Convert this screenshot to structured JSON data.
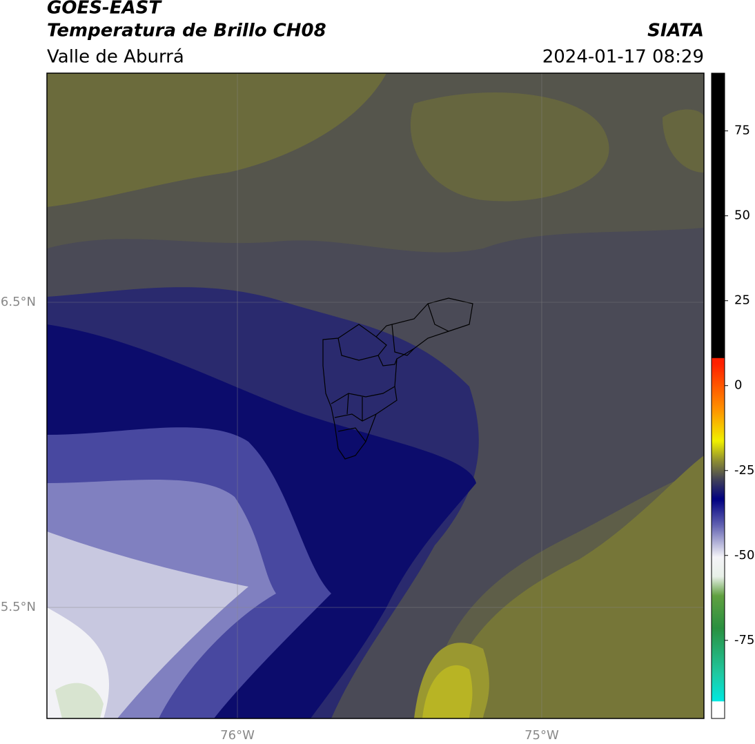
{
  "header": {
    "title": "GOES-EAST",
    "subtitle": "Temperatura de Brillo CH08",
    "source": "SIATA",
    "region": "Valle de Aburrá",
    "timestamp": "2024-01-17 08:29"
  },
  "map": {
    "lonlim": [
      -76.626,
      -74.467
    ],
    "latlim": [
      5.136,
      7.251
    ],
    "lon_ticks": [
      {
        "value": -76,
        "label": "76°W"
      },
      {
        "value": -75,
        "label": "75°W"
      }
    ],
    "lat_ticks": [
      {
        "value": 6.5,
        "label": "6.5°N"
      },
      {
        "value": 5.5,
        "label": "5.5°N"
      }
    ]
  },
  "colorbar": {
    "lim": [
      -98,
      92
    ],
    "ticks": [
      75,
      50,
      25,
      0,
      -25,
      -50,
      -75
    ]
  }
}
